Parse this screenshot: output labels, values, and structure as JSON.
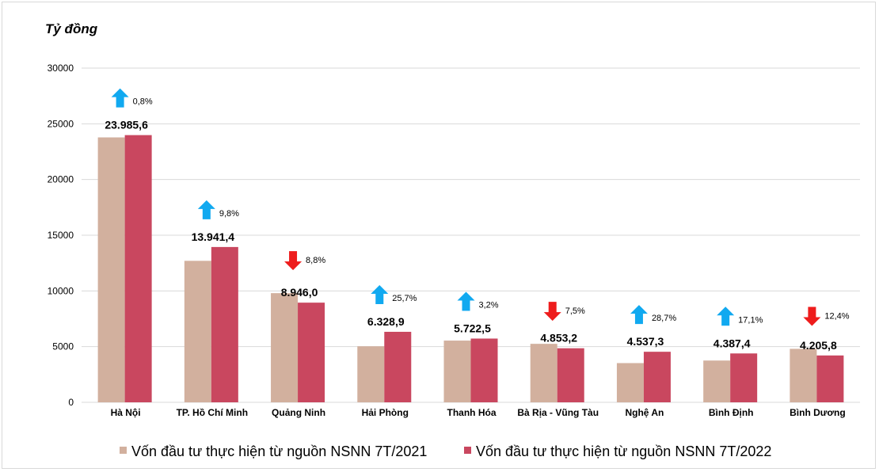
{
  "chart_data": {
    "type": "bar",
    "ylabel": "Tỷ đồng",
    "ylim": [
      0,
      30000
    ],
    "yticks": [
      0,
      5000,
      10000,
      15000,
      20000,
      25000,
      30000
    ],
    "categories": [
      "Hà Nội",
      "TP. Hồ Chí Minh",
      "Quảng Ninh",
      "Hải Phòng",
      "Thanh Hóa",
      "Bà Rịa - Vũng Tàu",
      "Nghệ An",
      "Bình Định",
      "Bình Dương"
    ],
    "series": [
      {
        "name": "Vốn đầu tư thực hiện từ nguồn NSNN 7T/2021",
        "color": "#d2b09e",
        "values": [
          23780,
          12700,
          9800,
          5030,
          5540,
          5250,
          3520,
          3750,
          4800
        ]
      },
      {
        "name": "Vốn đầu tư thực hiện từ nguồn NSNN 7T/2022",
        "color": "#c9475f",
        "values": [
          23985.6,
          13941.4,
          8946.0,
          6328.9,
          5722.5,
          4853.2,
          4537.3,
          4387.4,
          4205.8
        ],
        "data_labels": [
          "23.985,6",
          "13.941,4",
          "8.946,0",
          "6.328,9",
          "5.722,5",
          "4.853,2",
          "4.537,3",
          "4.387,4",
          "4.205,8"
        ]
      }
    ],
    "changes": [
      {
        "label": "0,8%",
        "direction": "up"
      },
      {
        "label": "9,8%",
        "direction": "up"
      },
      {
        "label": "8,8%",
        "direction": "down"
      },
      {
        "label": "25,7%",
        "direction": "up"
      },
      {
        "label": "3,2%",
        "direction": "up"
      },
      {
        "label": "7,5%",
        "direction": "down"
      },
      {
        "label": "28,7%",
        "direction": "up"
      },
      {
        "label": "17,1%",
        "direction": "up"
      },
      {
        "label": "12,4%",
        "direction": "down"
      }
    ],
    "arrow_colors": {
      "up": "#11a9f0",
      "down": "#ee1c1c"
    },
    "grid": true,
    "legend_position": "bottom"
  }
}
